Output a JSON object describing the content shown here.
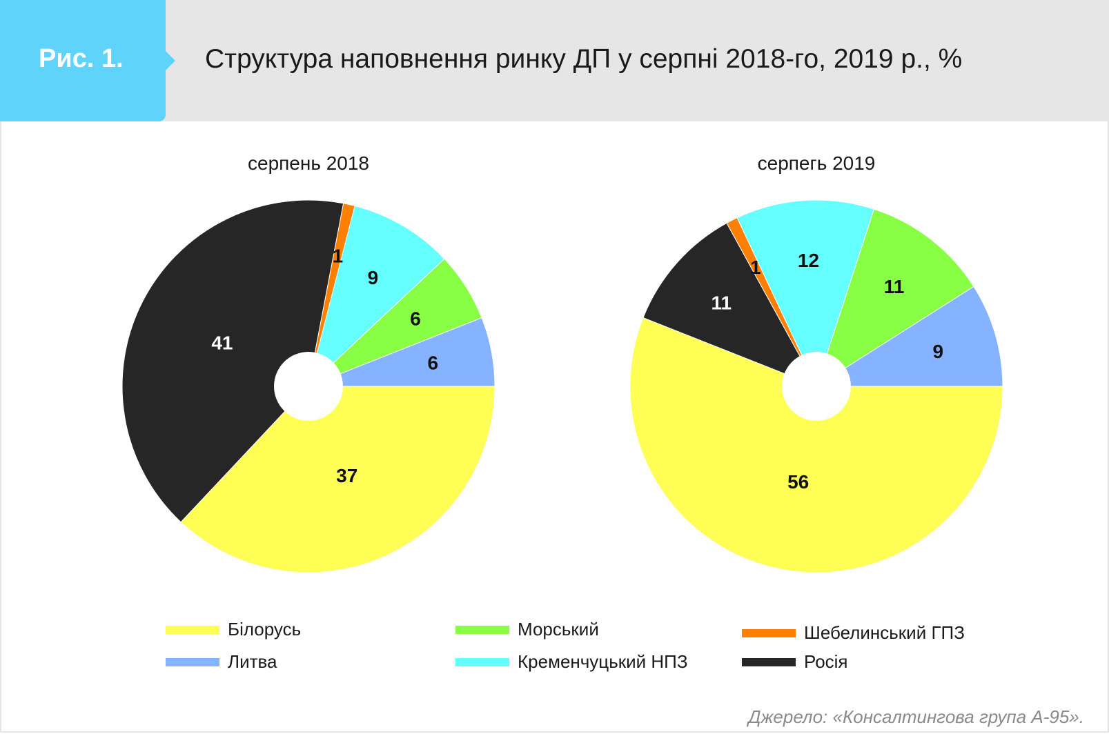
{
  "header": {
    "figure_label": "Рис. 1.",
    "title": "Структура наповнення ринку ДП у серпні 2018-го, 2019 р., %"
  },
  "colors": {
    "Білорусь": "#ffff55",
    "Литва": "#85b3ff",
    "Морський": "#88ff44",
    "Кременчуцький НПЗ": "#66ffff",
    "Шебелинський ГПЗ": "#ff8000",
    "Росія": "#262626",
    "header_band": "#e6e6e6",
    "badge": "#5fd3fa"
  },
  "chart_data": [
    {
      "type": "pie",
      "title": "серпень 2018",
      "categories": [
        "Литва",
        "Морський",
        "Кременчуцький НПЗ",
        "Шебелинський ГПЗ",
        "Росія",
        "Білорусь"
      ],
      "values": [
        6,
        6,
        9,
        1,
        41,
        37
      ],
      "value_labels": [
        "6",
        "6",
        "9",
        "1",
        "41",
        "37"
      ],
      "unit": "%"
    },
    {
      "type": "pie",
      "title": "серпегь 2019",
      "categories": [
        "Литва",
        "Морський",
        "Кременчуцький НПЗ",
        "Шебелинський ГПЗ",
        "Росія",
        "Білорусь"
      ],
      "values": [
        9,
        11,
        12,
        1,
        11,
        56
      ],
      "value_labels": [
        "9",
        "11",
        "12",
        "1",
        "11",
        "56"
      ],
      "unit": "%"
    }
  ],
  "legend": {
    "placement": "bottom",
    "items": [
      {
        "label": "Білорусь"
      },
      {
        "label": "Литва"
      },
      {
        "label": "Морський"
      },
      {
        "label": "Кременчуцький НПЗ"
      },
      {
        "label": "Шебелинський ГПЗ"
      },
      {
        "label": "Росія"
      }
    ]
  },
  "source": "Джерело: «Консалтингова група А-95»."
}
